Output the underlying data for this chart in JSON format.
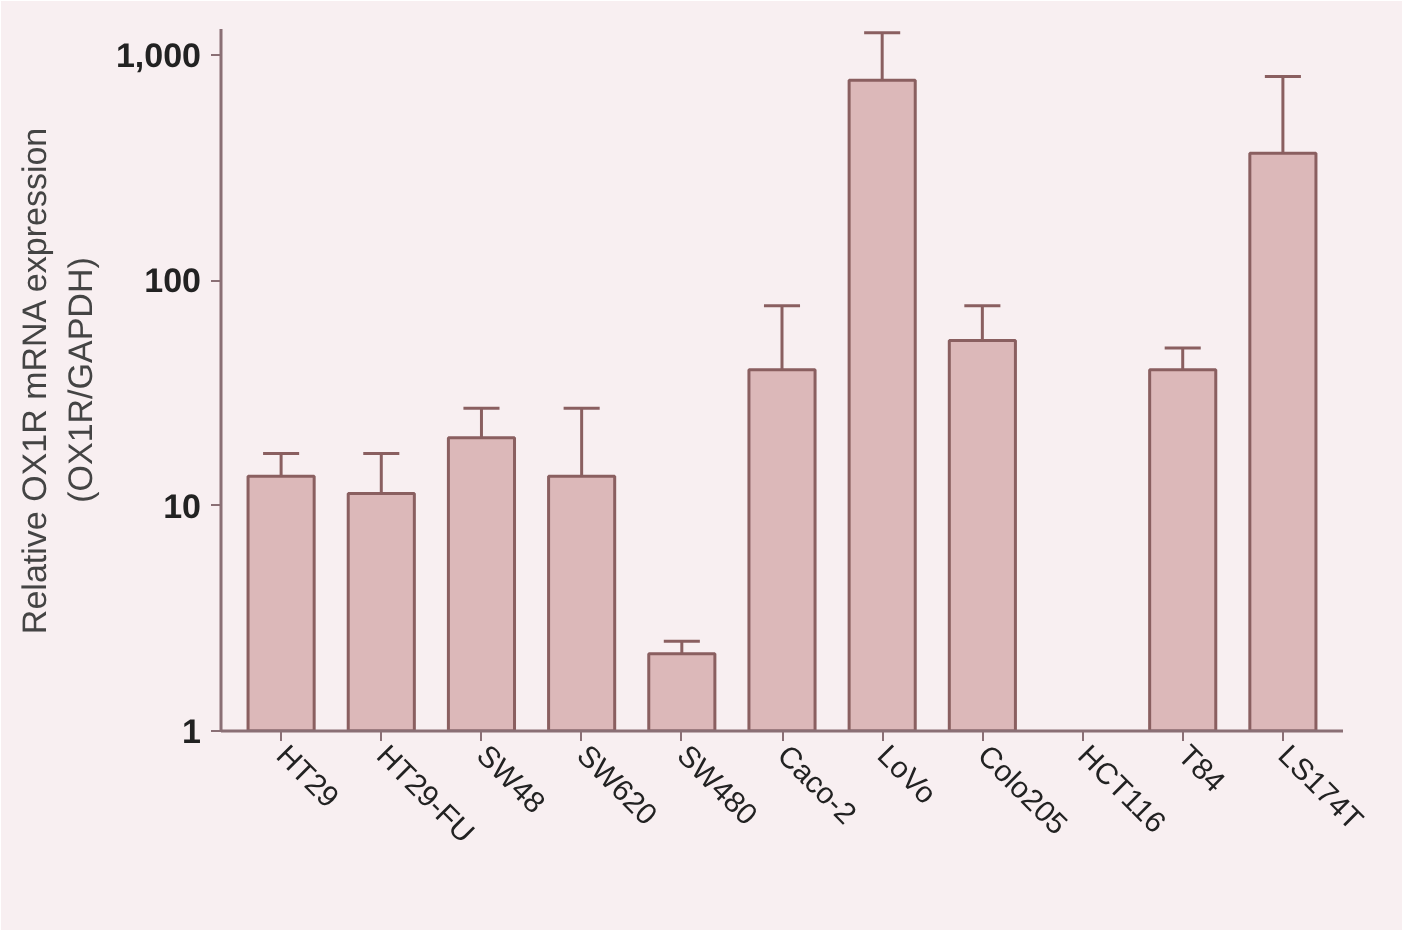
{
  "chart_data": {
    "type": "bar",
    "ylabel": "Relative OX1R mRNA expression\n(OX1R/GAPDH)",
    "categories": [
      "HT29",
      "HT29-FU",
      "SW48",
      "SW620",
      "SW480",
      "Caco-2",
      "LoVo",
      "Colo205",
      "HCT116",
      "T84",
      "LS174T"
    ],
    "values": [
      13.5,
      11.3,
      20,
      13.5,
      2.2,
      40,
      770,
      54,
      null,
      40,
      365
    ],
    "errors": [
      [
        13.5,
        17
      ],
      [
        11.3,
        17
      ],
      [
        20,
        27
      ],
      [
        13.5,
        27
      ],
      [
        2.2,
        2.5
      ],
      [
        40,
        77
      ],
      [
        770,
        1250
      ],
      [
        54,
        77
      ],
      null,
      [
        40,
        50
      ],
      [
        365,
        800
      ]
    ],
    "color": "#dcb8b9",
    "log": true,
    "ylim": [
      1,
      1300
    ],
    "yticks": [
      1,
      10,
      100,
      {
        "value": 1000,
        "label": "1,000"
      }
    ],
    "grid": false
  }
}
